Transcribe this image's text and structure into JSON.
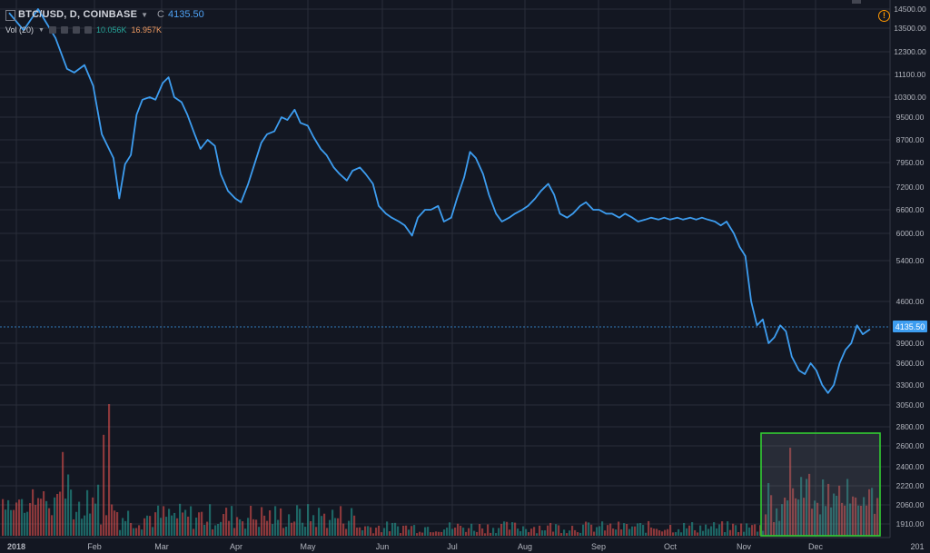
{
  "header": {
    "symbol": "BTC/USD, D, COINBASE",
    "close_prefix": "C",
    "close_value": "4135.50",
    "indicator": "Vol (20)",
    "vol_value_1": "10.056K",
    "vol_value_2": "16.957K",
    "alert_glyph": "!"
  },
  "colors": {
    "background": "#131722",
    "grid": "#2a2e39",
    "line": "#3d9df0",
    "vol_up": "#26a69a",
    "vol_down": "#ef5350",
    "highlight_border": "#32cd32",
    "price_tag": "#3d9df0"
  },
  "chart_data": {
    "type": "line",
    "title": "BTC/USD, D, COINBASE",
    "ylim": [
      3000,
      14700
    ],
    "y_axis_ticks": [
      "14500.00",
      "13500.00",
      "12300.00",
      "11100.00",
      "10300.00",
      "9500.00",
      "8700.00",
      "7950.00",
      "7200.00",
      "6600.00",
      "6000.00",
      "5400.00",
      "4600.00",
      "3900.00",
      "3600.00",
      "3300.00",
      "3050.00",
      "2800.00",
      "2600.00",
      "2400.00",
      "2220.00",
      "2060.00",
      "1910.00"
    ],
    "x_axis_ticks": [
      "2018",
      "Feb",
      "Mar",
      "Apr",
      "May",
      "Jun",
      "Jul",
      "Aug",
      "Sep",
      "Oct",
      "Nov",
      "Dec",
      "201"
    ],
    "last_price_label": "4135.50",
    "series": [
      {
        "values": [
          [
            0,
            14300
          ],
          [
            10,
            13400
          ],
          [
            20,
            14500
          ],
          [
            32,
            13000
          ],
          [
            40,
            11400
          ],
          [
            45,
            11200
          ],
          [
            52,
            11600
          ],
          [
            58,
            10700
          ],
          [
            64,
            8900
          ],
          [
            72,
            8100
          ],
          [
            76,
            6900
          ],
          [
            80,
            7900
          ],
          [
            84,
            8200
          ],
          [
            88,
            9600
          ],
          [
            92,
            10200
          ],
          [
            97,
            10300
          ],
          [
            101,
            10200
          ],
          [
            106,
            10800
          ],
          [
            110,
            11000
          ],
          [
            114,
            10300
          ],
          [
            119,
            10100
          ],
          [
            123,
            9600
          ],
          [
            128,
            8900
          ],
          [
            132,
            8400
          ],
          [
            137,
            8700
          ],
          [
            142,
            8500
          ],
          [
            146,
            7600
          ],
          [
            151,
            7100
          ],
          [
            156,
            6900
          ],
          [
            160,
            6800
          ],
          [
            165,
            7300
          ],
          [
            170,
            8000
          ],
          [
            174,
            8600
          ],
          [
            178,
            8900
          ],
          [
            183,
            9000
          ],
          [
            188,
            9500
          ],
          [
            192,
            9400
          ],
          [
            197,
            9800
          ],
          [
            201,
            9300
          ],
          [
            206,
            9200
          ],
          [
            210,
            8800
          ],
          [
            215,
            8400
          ],
          [
            219,
            8200
          ],
          [
            224,
            7800
          ],
          [
            228,
            7600
          ],
          [
            233,
            7400
          ],
          [
            237,
            7700
          ],
          [
            242,
            7800
          ],
          [
            246,
            7600
          ],
          [
            251,
            7300
          ],
          [
            255,
            6700
          ],
          [
            260,
            6500
          ],
          [
            264,
            6400
          ],
          [
            269,
            6300
          ],
          [
            273,
            6200
          ],
          [
            278,
            5950
          ],
          [
            282,
            6400
          ],
          [
            287,
            6600
          ],
          [
            291,
            6600
          ],
          [
            296,
            6700
          ],
          [
            300,
            6300
          ],
          [
            305,
            6400
          ],
          [
            309,
            6900
          ],
          [
            314,
            7500
          ],
          [
            318,
            8300
          ],
          [
            322,
            8100
          ],
          [
            327,
            7600
          ],
          [
            331,
            7000
          ],
          [
            336,
            6500
          ],
          [
            340,
            6300
          ],
          [
            345,
            6400
          ],
          [
            349,
            6500
          ],
          [
            354,
            6600
          ],
          [
            358,
            6700
          ],
          [
            363,
            6900
          ],
          [
            367,
            7100
          ],
          [
            372,
            7300
          ],
          [
            376,
            7000
          ],
          [
            380,
            6500
          ],
          [
            385,
            6400
          ],
          [
            389,
            6500
          ],
          [
            394,
            6700
          ],
          [
            398,
            6800
          ],
          [
            403,
            6600
          ],
          [
            407,
            6600
          ],
          [
            412,
            6500
          ],
          [
            416,
            6500
          ],
          [
            421,
            6400
          ],
          [
            425,
            6500
          ],
          [
            430,
            6400
          ],
          [
            434,
            6300
          ],
          [
            439,
            6350
          ],
          [
            443,
            6400
          ],
          [
            448,
            6350
          ],
          [
            452,
            6400
          ],
          [
            456,
            6350
          ],
          [
            461,
            6400
          ],
          [
            465,
            6350
          ],
          [
            470,
            6400
          ],
          [
            474,
            6350
          ],
          [
            478,
            6400
          ],
          [
            482,
            6350
          ],
          [
            487,
            6300
          ],
          [
            491,
            6200
          ],
          [
            495,
            6300
          ],
          [
            500,
            6000
          ],
          [
            504,
            5700
          ],
          [
            508,
            5500
          ],
          [
            512,
            4600
          ],
          [
            516,
            4200
          ],
          [
            520,
            4300
          ],
          [
            524,
            3900
          ],
          [
            528,
            4000
          ],
          [
            532,
            4200
          ],
          [
            536,
            4100
          ],
          [
            540,
            3700
          ],
          [
            545,
            3500
          ],
          [
            549,
            3450
          ],
          [
            553,
            3600
          ],
          [
            557,
            3500
          ],
          [
            561,
            3300
          ],
          [
            565,
            3200
          ],
          [
            569,
            3300
          ],
          [
            573,
            3600
          ],
          [
            577,
            3800
          ],
          [
            581,
            3900
          ],
          [
            585,
            4200
          ],
          [
            589,
            4050
          ],
          [
            594,
            4135.5
          ]
        ]
      }
    ],
    "volume": {
      "type": "bar",
      "highlight": "recent-period"
    }
  }
}
